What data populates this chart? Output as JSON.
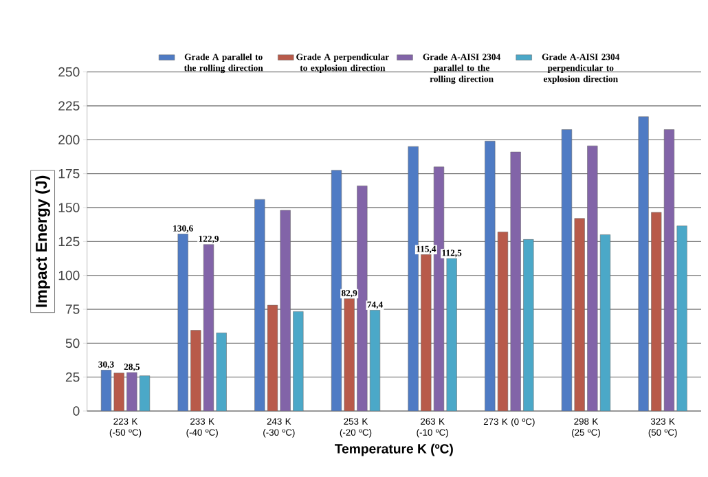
{
  "chart_data": {
    "type": "bar",
    "xlabel": "Temperature K (ºC)",
    "ylabel": "Impact Energy (J)",
    "categories": [
      "223 K (-50 ºC)",
      "233 K (-40 ºC)",
      "243 K (-30 ºC)",
      "253 K (-20 ºC)",
      "263 K (-10 ºC)",
      "273 K (0 ºC)",
      "298 K (25 ºC)",
      "323 K (50 ºC)"
    ],
    "series": [
      {
        "name": "Grade A parallel to the rolling direction",
        "color": "#4f7bc4",
        "values": [
          30.3,
          130.6,
          156,
          177.5,
          195,
          199,
          207.5,
          217
        ],
        "value_labels": [
          "30,3",
          "130,6",
          null,
          null,
          null,
          null,
          null,
          null
        ]
      },
      {
        "name": "Grade A perpendicular to explosion direction",
        "color": "#b85a4a",
        "values": [
          28,
          59.5,
          78,
          82.9,
          115.4,
          132,
          142,
          146.5
        ],
        "value_labels": [
          null,
          null,
          null,
          "82,9",
          "115,4",
          null,
          null,
          null
        ]
      },
      {
        "name": "Grade A-AISI 2304 parallel to the rolling direction",
        "color": "#8264a8",
        "values": [
          28.5,
          122.9,
          148,
          166,
          180,
          191,
          195.5,
          207.5
        ],
        "value_labels": [
          "28,5",
          "122,9",
          null,
          null,
          null,
          null,
          null,
          null
        ]
      },
      {
        "name": "Grade A-AISI 2304 perpendicular to explosion direction",
        "color": "#4ba8c8",
        "values": [
          26,
          57.6,
          73.4,
          74.4,
          112.5,
          126.5,
          130,
          136.5
        ],
        "value_labels": [
          null,
          null,
          null,
          "74,4",
          "112,5",
          null,
          null,
          null
        ]
      }
    ],
    "ylim": [
      0,
      250
    ],
    "yticks": [
      0,
      25,
      50,
      75,
      100,
      125,
      150,
      175,
      200,
      225,
      250
    ],
    "grid": "y",
    "legend": "top"
  }
}
